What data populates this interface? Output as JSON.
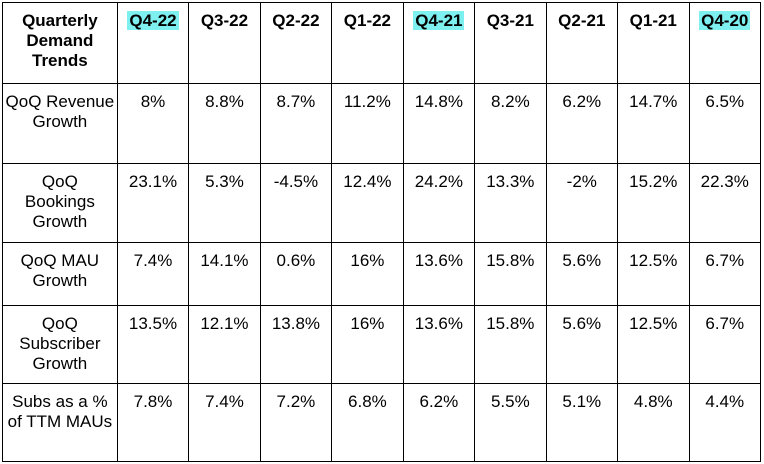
{
  "table": {
    "corner_label": "Quarterly Demand Trends",
    "highlight_color": "#7ff0f0",
    "columns": [
      {
        "label": "Q4-22",
        "highlighted": true
      },
      {
        "label": "Q3-22",
        "highlighted": false
      },
      {
        "label": "Q2-22",
        "highlighted": false
      },
      {
        "label": "Q1-22",
        "highlighted": false
      },
      {
        "label": "Q4-21",
        "highlighted": true
      },
      {
        "label": "Q3-21",
        "highlighted": false
      },
      {
        "label": "Q2-21",
        "highlighted": false
      },
      {
        "label": "Q1-21",
        "highlighted": false
      },
      {
        "label": "Q4-20",
        "highlighted": true
      }
    ],
    "rows": [
      {
        "label": "QoQ Revenue Growth",
        "values": [
          "8%",
          "8.8%",
          "8.7%",
          "11.2%",
          "14.8%",
          "8.2%",
          "6.2%",
          "14.7%",
          "6.5%"
        ]
      },
      {
        "label": "QoQ Bookings Growth",
        "values": [
          "23.1%",
          "5.3%",
          "-4.5%",
          "12.4%",
          "24.2%",
          "13.3%",
          "-2%",
          "15.2%",
          "22.3%"
        ]
      },
      {
        "label": "QoQ MAU Growth",
        "values": [
          "7.4%",
          "14.1%",
          "0.6%",
          "16%",
          "13.6%",
          "15.8%",
          "5.6%",
          "12.5%",
          "6.7%"
        ]
      },
      {
        "label": "QoQ Subscriber Growth",
        "values": [
          "13.5%",
          "12.1%",
          "13.8%",
          "16%",
          "13.6%",
          "15.8%",
          "5.6%",
          "12.5%",
          "6.7%"
        ]
      },
      {
        "label": "Subs as a % of TTM MAUs",
        "values": [
          "7.8%",
          "7.4%",
          "7.2%",
          "6.8%",
          "6.2%",
          "5.5%",
          "5.1%",
          "4.8%",
          "4.4%"
        ]
      }
    ]
  }
}
